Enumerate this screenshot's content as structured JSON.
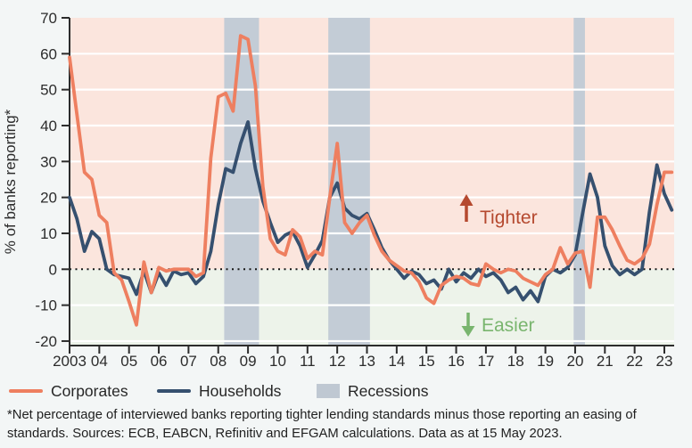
{
  "chart_data": {
    "type": "line",
    "ylabel": "% of banks reporting*",
    "ylim": [
      -20,
      70
    ],
    "yticks": [
      70,
      60,
      50,
      40,
      30,
      20,
      10,
      0,
      -10,
      -20
    ],
    "x_start_year": 2003,
    "frequency": "quarterly",
    "xtick_labels": [
      "2003",
      "04",
      "05",
      "06",
      "07",
      "08",
      "09",
      "10",
      "11",
      "12",
      "13",
      "14",
      "15",
      "16",
      "17",
      "18",
      "19",
      "20",
      "21",
      "22",
      "23"
    ],
    "grid": "horizontal-white",
    "zero_line": "dotted-black",
    "legend_position": "bottom",
    "series": [
      {
        "name": "Corporates",
        "color": "#ee7f60",
        "values": [
          59,
          43,
          27,
          25,
          15,
          13,
          -1,
          -3,
          -9,
          -15.5,
          2,
          -6.5,
          0.5,
          -0.5,
          0,
          0,
          0,
          -2,
          -1,
          31,
          48,
          49,
          44,
          65,
          64,
          51,
          23,
          8.5,
          5,
          4,
          11,
          9,
          3,
          5,
          4,
          20,
          35,
          13,
          10,
          13,
          15,
          9.5,
          5,
          2.5,
          1,
          -0.5,
          -1,
          -3.5,
          -8,
          -9.5,
          -4.5,
          -3,
          -2,
          -2.5,
          -4,
          -4.5,
          1.5,
          0,
          -1,
          0,
          -0.5,
          -2.5,
          -3.5,
          -4.5,
          -1.5,
          0,
          6,
          1.5,
          4.5,
          5,
          -5,
          14.5,
          14.5,
          11,
          6.5,
          2.5,
          1.5,
          3,
          7,
          18,
          27,
          27
        ]
      },
      {
        "name": "Households",
        "color": "#36506f",
        "values": [
          20,
          14,
          5,
          10.5,
          8.5,
          0,
          -1.5,
          -2,
          -2.5,
          -7,
          -0.5,
          -6.5,
          -1,
          -4.5,
          -0.5,
          -1.5,
          -1,
          -4,
          -2,
          5,
          18,
          28,
          27,
          35,
          41,
          28,
          19,
          13,
          7.5,
          9.5,
          10.5,
          6.5,
          0.5,
          4,
          8,
          20,
          24,
          17,
          15,
          14,
          15.5,
          11,
          6,
          2.5,
          0,
          -2.5,
          -0.5,
          -1.5,
          -4,
          -3,
          -5.5,
          0,
          -3.5,
          -1,
          -2.5,
          0,
          -2,
          -1,
          -3,
          -6.5,
          -5,
          -8.5,
          -6,
          -9,
          -2,
          0,
          -1,
          0.5,
          4,
          15.5,
          26.5,
          20,
          6.5,
          1,
          -1.5,
          0,
          -1.5,
          0,
          16,
          29,
          21,
          16.5
        ]
      }
    ],
    "recessions": [
      [
        2008.2,
        2009.37
      ],
      [
        2011.7,
        2013.1
      ],
      [
        2019.95,
        2020.33
      ]
    ],
    "zones": {
      "above_zero_color": "#fbe5dd",
      "below_zero_color": "#edf3ea",
      "recession_color": "#c3ccd6"
    },
    "annotations": [
      {
        "id": "tighter",
        "label": "Tighter",
        "arrow": "up",
        "color": "#b5492f"
      },
      {
        "id": "easier",
        "label": "Easier",
        "arrow": "down",
        "color": "#79b56e"
      }
    ]
  },
  "legend": {
    "items": [
      {
        "label": "Corporates",
        "swatch": "line",
        "color": "#ee7f60"
      },
      {
        "label": "Households",
        "swatch": "line",
        "color": "#36506f"
      },
      {
        "label": "Recessions",
        "swatch": "box",
        "color": "#bfc8d2"
      }
    ]
  },
  "footnote": "*Net percentage of interviewed banks reporting tighter lending standards minus those reporting an easing of standards. Sources: ECB, EABCN, Refinitiv and EFGAM calculations. Data as at 15 May 2023."
}
